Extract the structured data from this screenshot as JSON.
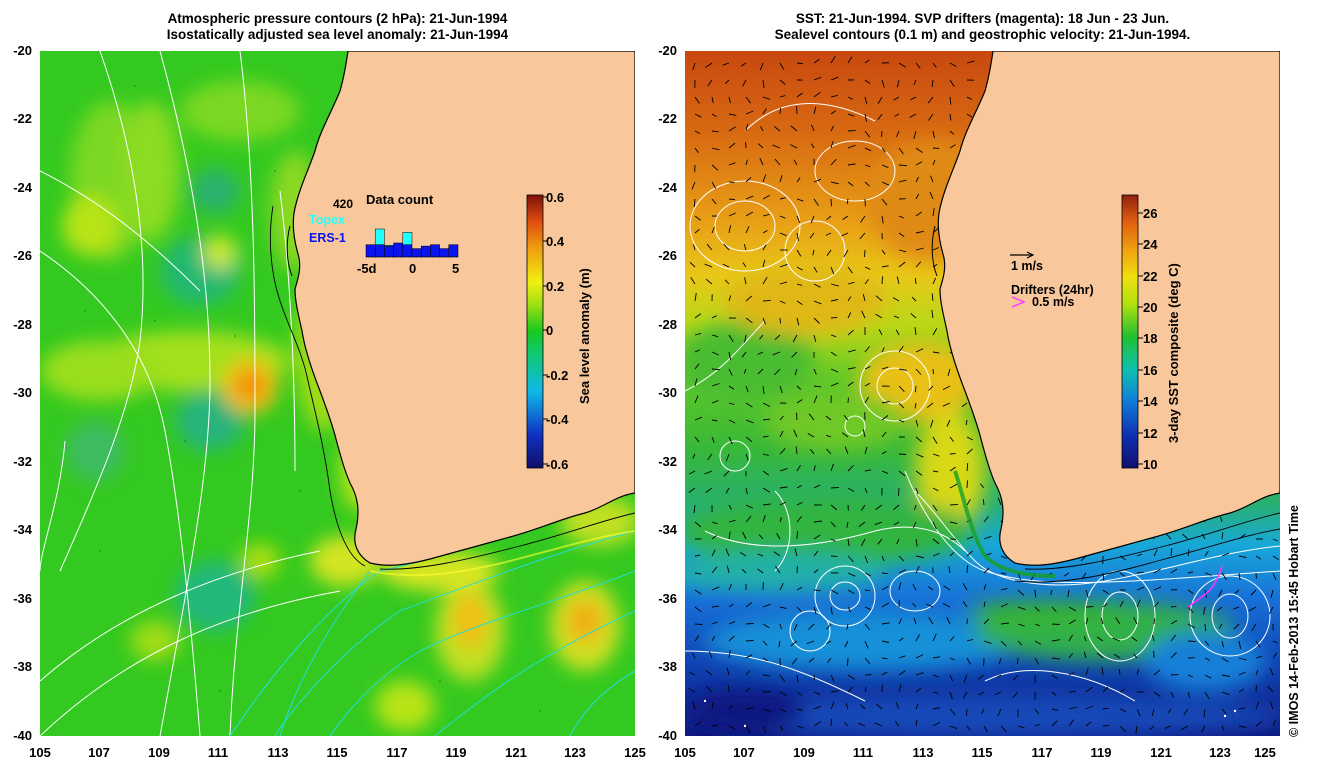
{
  "left_panel": {
    "title_line1": "Atmospheric pressure contours (2 hPa): 21-Jun-1994",
    "title_line2": "Isostatically adjusted sea level anomaly: 21-Jun-1994",
    "colorbar": {
      "label": "Sea level anomaly (m)",
      "ticks": [
        "0.6",
        "0.4",
        "0.2",
        "0",
        "-0.2",
        "-0.4",
        "-0.6"
      ],
      "range": [
        -0.6,
        0.6
      ]
    },
    "data_count": {
      "title": "Data count",
      "max_label": "420",
      "topex_label": "Topex",
      "ers1_label": "ERS-1",
      "xticks": [
        "-5d",
        "0",
        "5"
      ],
      "topex_color": "#22ffff",
      "ers1_color": "#0a14ee",
      "topex_rel": [
        0.0,
        1.0,
        0.42,
        0.0,
        0.88,
        0.0,
        0.0,
        0.0,
        0.0,
        0.0
      ],
      "ers1_rel": [
        0.44,
        0.44,
        0.39,
        0.5,
        0.44,
        0.3,
        0.39,
        0.44,
        0.3,
        0.44
      ]
    }
  },
  "right_panel": {
    "title_line1": "SST: 21-Jun-1994. SVP drifters (magenta): 18 Jun - 23 Jun.",
    "title_line2": "Sealevel contours (0.1 m) and geostrophic velocity: 21-Jun-1994.",
    "colorbar": {
      "label": "3-day SST composite (deg C)",
      "ticks": [
        "26",
        "24",
        "22",
        "20",
        "18",
        "16",
        "14",
        "12",
        "10"
      ],
      "range": [
        10,
        27
      ]
    },
    "legend": {
      "velocity_label": "1 m/s",
      "drifters_label": "Drifters (24hr)",
      "drifter_speed_label": "0.5 m/s",
      "drifter_color": "#ff33ff"
    }
  },
  "axes": {
    "lat_labels": [
      "-20",
      "-22",
      "-24",
      "-26",
      "-28",
      "-30",
      "-32",
      "-34",
      "-36",
      "-38",
      "-40"
    ],
    "lon_labels": [
      "105",
      "107",
      "109",
      "111",
      "113",
      "115",
      "117",
      "119",
      "121",
      "123",
      "125"
    ],
    "lat_range": [
      -40,
      -20
    ],
    "lon_range": [
      105,
      125
    ]
  },
  "credit": "© IMOS 14-Feb-2013 15:45 Hobart Time",
  "colors": {
    "land": "#f8c89c",
    "coastline": "#000000",
    "contour_white": "#ffffff",
    "contour_cyan": "#22dddd"
  }
}
